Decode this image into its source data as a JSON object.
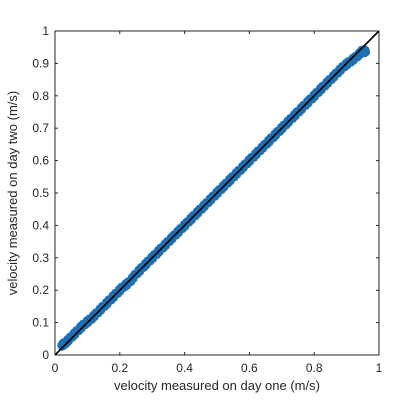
{
  "chart_data": {
    "type": "scatter",
    "title": "",
    "xlabel": "velocity measured on day one (m/s)",
    "ylabel": "velocity measured on day two (m/s)",
    "xlim": [
      0,
      1
    ],
    "ylim": [
      0,
      1
    ],
    "xticks": [
      "0",
      "0.2",
      "0.4",
      "0.6",
      "0.8",
      "1"
    ],
    "yticks": [
      "0",
      "0.1",
      "0.2",
      "0.3",
      "0.4",
      "0.5",
      "0.6",
      "0.7",
      "0.8",
      "0.9",
      "1"
    ],
    "grid": false,
    "box": true,
    "reference_line": {
      "x": [
        0,
        1
      ],
      "y": [
        0,
        1
      ],
      "color": "#000000"
    },
    "series": [
      {
        "color": "#1f6fb2",
        "x": [
          0.02,
          0.03,
          0.05,
          0.07,
          0.09,
          0.11,
          0.13,
          0.15,
          0.17,
          0.19,
          0.21,
          0.23,
          0.25,
          0.27,
          0.29,
          0.31,
          0.33,
          0.35,
          0.37,
          0.39,
          0.41,
          0.43,
          0.45,
          0.47,
          0.49,
          0.51,
          0.53,
          0.55,
          0.57,
          0.59,
          0.61,
          0.63,
          0.65,
          0.67,
          0.69,
          0.71,
          0.73,
          0.75,
          0.77,
          0.79,
          0.81,
          0.83,
          0.85,
          0.87,
          0.89,
          0.91,
          0.93,
          0.95,
          0.96
        ],
        "y": [
          0.03,
          0.035,
          0.055,
          0.075,
          0.095,
          0.11,
          0.13,
          0.15,
          0.17,
          0.19,
          0.21,
          0.225,
          0.25,
          0.27,
          0.29,
          0.31,
          0.33,
          0.35,
          0.37,
          0.39,
          0.41,
          0.43,
          0.45,
          0.47,
          0.49,
          0.51,
          0.53,
          0.55,
          0.57,
          0.59,
          0.61,
          0.63,
          0.65,
          0.67,
          0.69,
          0.71,
          0.73,
          0.75,
          0.77,
          0.79,
          0.81,
          0.83,
          0.85,
          0.87,
          0.89,
          0.905,
          0.92,
          0.94,
          0.935
        ]
      }
    ]
  }
}
